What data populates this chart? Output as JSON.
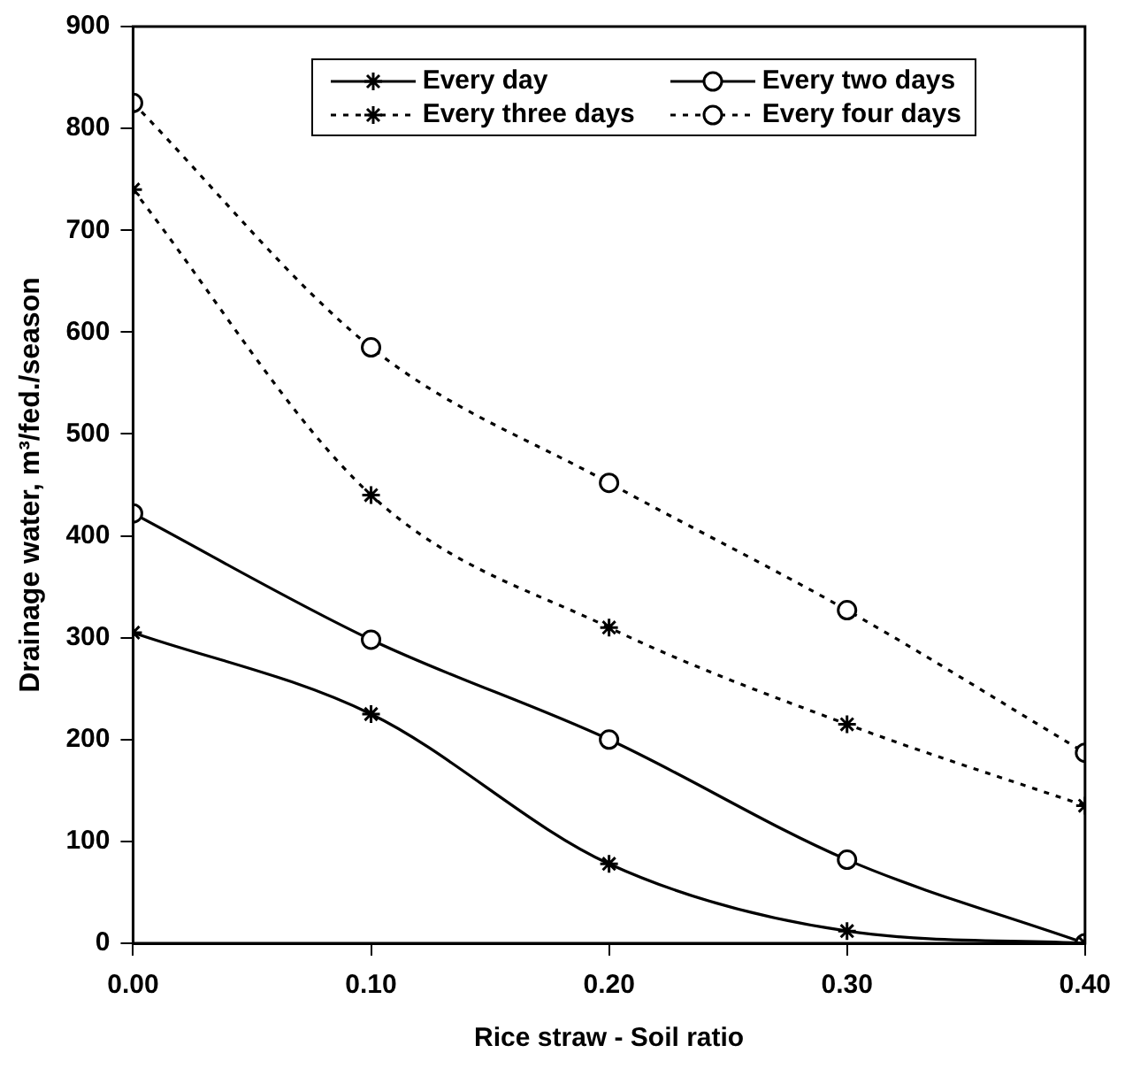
{
  "chart_data": {
    "type": "line",
    "xlabel": "Rice straw - Soil ratio",
    "ylabel": "Drainage water, m³/fed./season",
    "x": [
      0,
      0.1,
      0.2,
      0.3,
      0.4
    ],
    "series": [
      {
        "name": "Every day",
        "color": "#000000",
        "values": [
          305,
          225,
          78,
          12,
          0
        ],
        "marker": "cross",
        "line_style": "solid"
      },
      {
        "name": "Every two days",
        "color": "#000000",
        "values": [
          422,
          298,
          200,
          82,
          0
        ],
        "marker": "circle",
        "line_style": "solid"
      },
      {
        "name": "Every three days",
        "color": "#000000",
        "values": [
          740,
          440,
          310,
          215,
          135
        ],
        "marker": "cross",
        "line_style": "dotted"
      },
      {
        "name": "Every four days",
        "color": "#000000",
        "values": [
          825,
          585,
          452,
          327,
          187
        ],
        "marker": "circle",
        "line_style": "dotted"
      }
    ],
    "xlim": [
      0,
      0.4
    ],
    "xticks": [
      {
        "value": 0,
        "label": "0.00"
      },
      {
        "value": 0.1,
        "label": "0.10"
      },
      {
        "value": 0.2,
        "label": "0.20"
      },
      {
        "value": 0.3,
        "label": "0.30"
      },
      {
        "value": 0.4,
        "label": "0.40"
      }
    ],
    "ylim": [
      0,
      900
    ],
    "yticks": [
      0,
      100,
      200,
      300,
      400,
      500,
      600,
      700,
      800,
      900
    ],
    "grid": false,
    "legend": "top"
  }
}
